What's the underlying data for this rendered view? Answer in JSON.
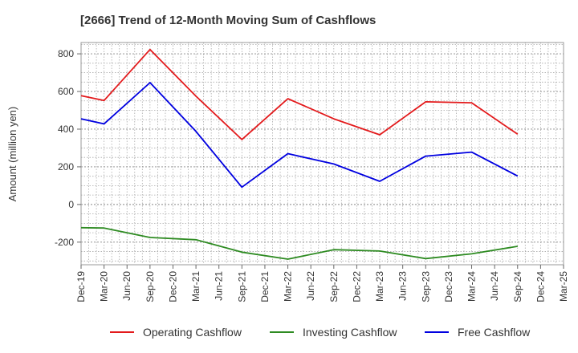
{
  "chart_data": {
    "type": "line",
    "title": "[2666]  Trend of 12-Month Moving Sum of Cashflows",
    "xlabel": "",
    "ylabel": "Amount (million yen)",
    "ylim": [
      -320,
      860
    ],
    "yticks": [
      -200,
      0,
      200,
      400,
      600,
      800
    ],
    "x_tick_labels": [
      "Dec-19",
      "Mar-20",
      "Jun-20",
      "Sep-20",
      "Dec-20",
      "Mar-21",
      "Jun-21",
      "Sep-21",
      "Dec-21",
      "Mar-22",
      "Jun-22",
      "Sep-22",
      "Dec-22",
      "Mar-23",
      "Jun-23",
      "Sep-23",
      "Dec-23",
      "Mar-24",
      "Jun-24",
      "Sep-24",
      "Dec-24",
      "Mar-25"
    ],
    "grid": true,
    "legend_position": "bottom",
    "series": [
      {
        "name": "Operating Cashflow",
        "color": "#e31a1c",
        "points": [
          [
            "Dec-19",
            578
          ],
          [
            "Mar-20",
            552
          ],
          [
            "Sep-20",
            823
          ],
          [
            "Mar-21",
            575
          ],
          [
            "Sep-21",
            345
          ],
          [
            "Mar-22",
            562
          ],
          [
            "Sep-22",
            455
          ],
          [
            "Mar-23",
            370
          ],
          [
            "Sep-23",
            545
          ],
          [
            "Mar-24",
            540
          ],
          [
            "Sep-24",
            373
          ]
        ]
      },
      {
        "name": "Investing Cashflow",
        "color": "#2e8b22",
        "points": [
          [
            "Dec-19",
            -123
          ],
          [
            "Mar-20",
            -125
          ],
          [
            "Sep-20",
            -175
          ],
          [
            "Mar-21",
            -187
          ],
          [
            "Sep-21",
            -253
          ],
          [
            "Mar-22",
            -290
          ],
          [
            "Sep-22",
            -240
          ],
          [
            "Mar-23",
            -247
          ],
          [
            "Sep-23",
            -287
          ],
          [
            "Mar-24",
            -262
          ],
          [
            "Sep-24",
            -222
          ]
        ]
      },
      {
        "name": "Free Cashflow",
        "color": "#0000e0",
        "points": [
          [
            "Dec-19",
            455
          ],
          [
            "Mar-20",
            428
          ],
          [
            "Sep-20",
            647
          ],
          [
            "Mar-21",
            388
          ],
          [
            "Sep-21",
            92
          ],
          [
            "Mar-22",
            270
          ],
          [
            "Sep-22",
            215
          ],
          [
            "Mar-23",
            123
          ],
          [
            "Sep-23",
            257
          ],
          [
            "Mar-24",
            278
          ],
          [
            "Sep-24",
            151
          ]
        ]
      }
    ]
  }
}
